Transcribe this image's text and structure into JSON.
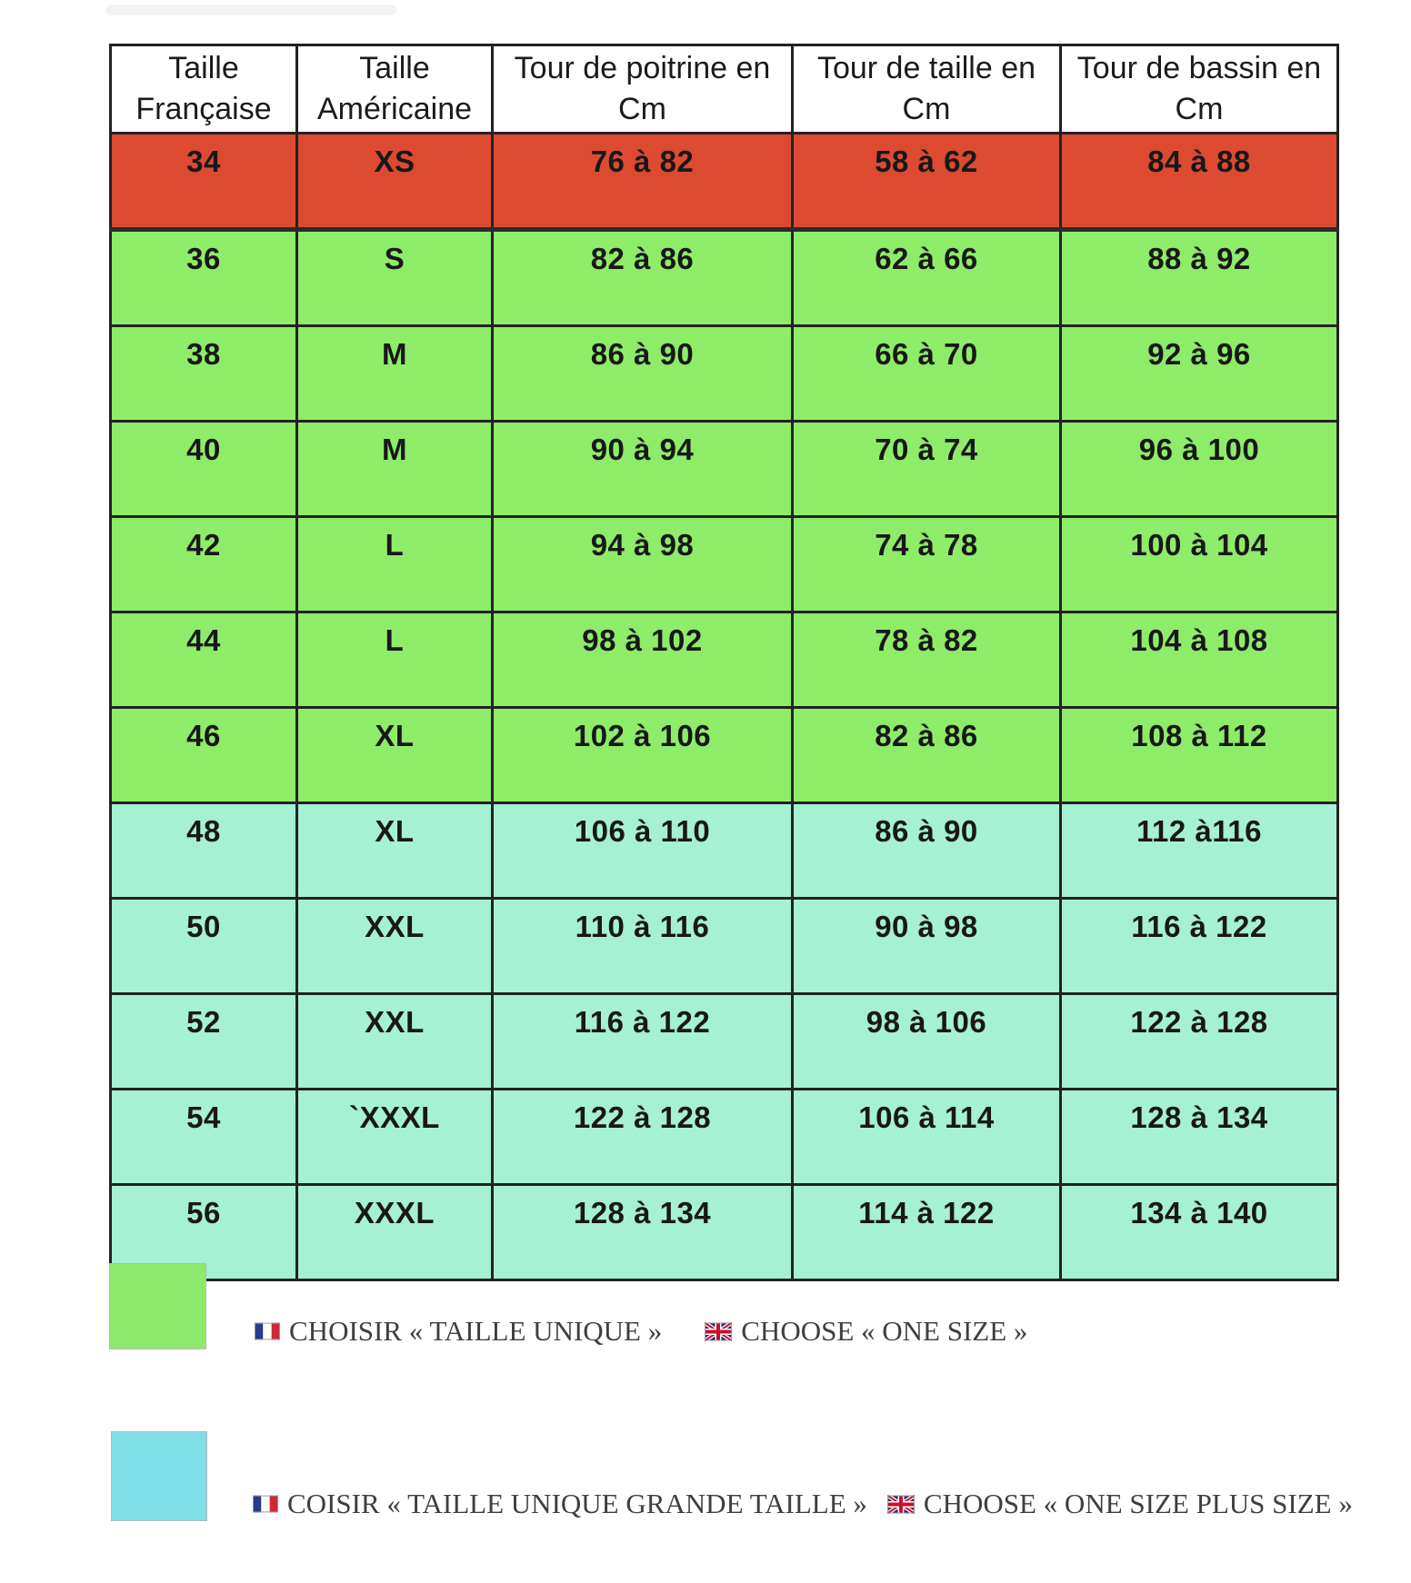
{
  "colors": {
    "red": "#DC4A31",
    "green": "#8EEC69",
    "mint": "#A6F0D3",
    "legend_green": "#8DE96C",
    "legend_cyan": "#7FDEE8",
    "border": "#222222"
  },
  "table": {
    "headers": [
      "Taille\nFrançaise",
      "Taille\nAméricaine",
      "Tour de poitrine en\nCm",
      "Tour de taille en\nCm",
      "Tour de bassin en\nCm"
    ],
    "rows": [
      {
        "fr": "34",
        "us": "XS",
        "chest": "76 à 82",
        "waist": "58 à 62",
        "hip": "84 à 88",
        "band": "red"
      },
      {
        "fr": "36",
        "us": "S",
        "chest": "82 à 86",
        "waist": "62 à 66",
        "hip": "88 à 92",
        "band": "green"
      },
      {
        "fr": "38",
        "us": "M",
        "chest": "86 à 90",
        "waist": "66 à 70",
        "hip": "92 à 96",
        "band": "green"
      },
      {
        "fr": "40",
        "us": "M",
        "chest": "90 à 94",
        "waist": "70 à 74",
        "hip": "96 à 100",
        "band": "green"
      },
      {
        "fr": "42",
        "us": "L",
        "chest": "94 à 98",
        "waist": "74 à 78",
        "hip": "100 à 104",
        "band": "green"
      },
      {
        "fr": "44",
        "us": "L",
        "chest": "98 à 102",
        "waist": "78 à 82",
        "hip": "104 à 108",
        "band": "green"
      },
      {
        "fr": "46",
        "us": "XL",
        "chest": "102 à 106",
        "waist": "82 à 86",
        "hip": "108 à 112",
        "band": "green"
      },
      {
        "fr": "48",
        "us": "XL",
        "chest": "106 à 110",
        "waist": "86 à 90",
        "hip": "112 à116",
        "band": "mint"
      },
      {
        "fr": "50",
        "us": "XXL",
        "chest": "110 à 116",
        "waist": "90 à 98",
        "hip": "116 à 122",
        "band": "mint"
      },
      {
        "fr": "52",
        "us": "XXL",
        "chest": "116 à 122",
        "waist": "98 à 106",
        "hip": "122 à 128",
        "band": "mint"
      },
      {
        "fr": "54",
        "us": "`XXXL",
        "chest": "122 à 128",
        "waist": "106 à 114",
        "hip": "128 à 134",
        "band": "mint"
      },
      {
        "fr": "56",
        "us": "XXXL",
        "chest": "128 à 134",
        "waist": "114 à 122",
        "hip": "134 à 140",
        "band": "mint"
      }
    ]
  },
  "legend": [
    {
      "swatch_color_key": "legend_green",
      "fr_icon": "french-flag-icon",
      "fr_label": "CHOISIR « TAILLE UNIQUE »",
      "en_icon": "uk-flag-icon",
      "en_label": "CHOOSE « ONE SIZE »"
    },
    {
      "swatch_color_key": "legend_cyan",
      "fr_icon": "french-flag-icon",
      "fr_label": "COISIR « TAILLE UNIQUE GRANDE TAILLE »",
      "en_icon": "uk-flag-icon",
      "en_label": "CHOOSE « ONE SIZE PLUS SIZE »"
    }
  ]
}
